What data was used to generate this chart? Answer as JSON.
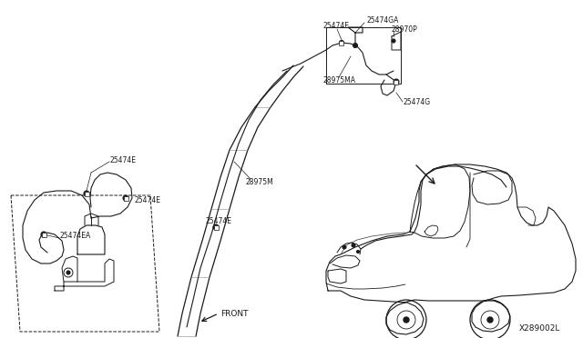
{
  "bg_color": "#ffffff",
  "line_color": "#1a1a1a",
  "diagram_id": "X289002L",
  "fs": 5.5,
  "fs_front": 6.5,
  "fs_id": 6.5,
  "labels": {
    "lbl_25474E_top": "25474E",
    "lbl_25474E_mid": "25474E",
    "lbl_25474EA": "25474EA",
    "lbl_25474E_center": "25474E",
    "lbl_28975M": "28975M",
    "lbl_25474E_detail": "25474E",
    "lbl_25474GA": "25474GA",
    "lbl_28970P": "28970P",
    "lbl_28975MA": "28975MA",
    "lbl_25474G": "25474G",
    "lbl_FRONT": "FRONT"
  }
}
